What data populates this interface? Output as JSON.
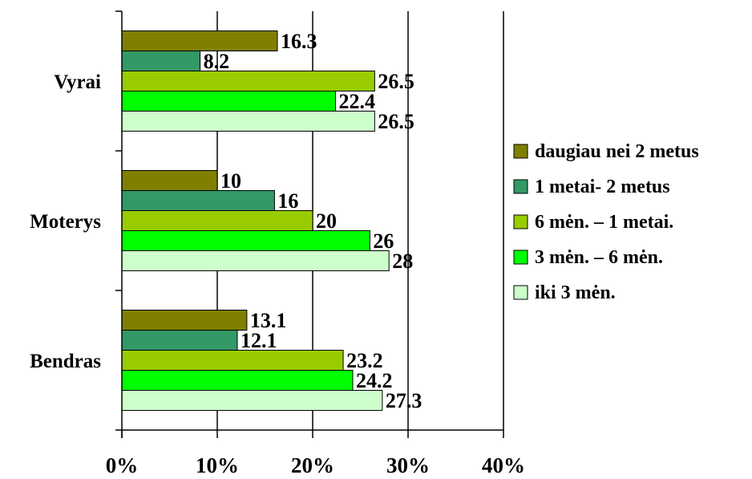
{
  "chart_data": {
    "type": "bar",
    "orientation": "horizontal",
    "categories": [
      "Vyrai",
      "Moterys",
      "Bendras"
    ],
    "series": [
      {
        "name": "daugiau nei 2 metus",
        "color": "#808000",
        "values": [
          16.3,
          10,
          13.1
        ],
        "labels": [
          "16.3",
          "10",
          "13.1"
        ]
      },
      {
        "name": "1 metai- 2 metus",
        "color": "#339966",
        "values": [
          8.2,
          16,
          12.1
        ],
        "labels": [
          "8.2",
          "16",
          "12.1"
        ]
      },
      {
        "name": "6 mėn. – 1 metai.",
        "color": "#99cc00",
        "values": [
          26.5,
          20,
          23.2
        ],
        "labels": [
          "26.5",
          "20",
          "23.2"
        ]
      },
      {
        "name": "3 mėn. – 6 mėn.",
        "color": "#00ff00",
        "values": [
          22.4,
          26,
          24.2
        ],
        "labels": [
          "22.4",
          "26",
          "24.2"
        ]
      },
      {
        "name": "iki 3 mėn.",
        "color": "#ccffcc",
        "values": [
          26.5,
          28,
          27.3
        ],
        "labels": [
          "26.5",
          "28",
          "27.3"
        ]
      }
    ],
    "xlim": [
      0,
      40
    ],
    "xticks": [
      "0%",
      "10%",
      "20%",
      "30%",
      "40%"
    ],
    "xtick_values": [
      0,
      10,
      20,
      30,
      40
    ],
    "grid": "vertical",
    "legend_position": "right"
  }
}
